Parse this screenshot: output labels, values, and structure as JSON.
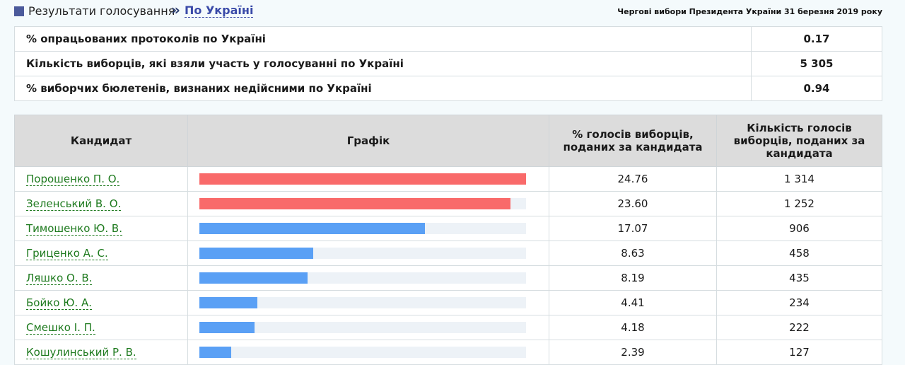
{
  "breadcrumb": {
    "root": "Результати голосування",
    "separator": "»",
    "current": "По Україні"
  },
  "election_title": "Чергові вибори Президента України 31 березня 2019 року",
  "summary": [
    {
      "label": "% опрацьованих протоколів по Україні",
      "value": "0.17"
    },
    {
      "label": "Кількість виборців, які взяли участь у голосуванні по Україні",
      "value": "5 305"
    },
    {
      "label": "% виборчих бюлетенів, визнаних недійсними по Україні",
      "value": "0.94"
    }
  ],
  "table": {
    "headers": {
      "candidate": "Кандидат",
      "chart": "Графік",
      "percent": "% голосів виборців, поданих за кандидата",
      "votes": "Кількість голосів виборців, поданих за кандидата"
    },
    "rows": [
      {
        "name": "Порошенко П. О.",
        "percent": "24.76",
        "votes": "1 314"
      },
      {
        "name": "Зеленський В. О.",
        "percent": "23.60",
        "votes": "1 252"
      },
      {
        "name": "Тимошенко Ю. В.",
        "percent": "17.07",
        "votes": "906"
      },
      {
        "name": "Гриценко А. С.",
        "percent": "8.63",
        "votes": "458"
      },
      {
        "name": "Ляшко О. В.",
        "percent": "8.19",
        "votes": "435"
      },
      {
        "name": "Бойко Ю. А.",
        "percent": "4.41",
        "votes": "234"
      },
      {
        "name": "Смешко І. П.",
        "percent": "4.18",
        "votes": "222"
      },
      {
        "name": "Кошулинський Р. В.",
        "percent": "2.39",
        "votes": "127"
      }
    ]
  },
  "colors": {
    "leader_bar": "#f96a6a",
    "other_bar": "#5aa0f5",
    "bar_track": "#edf2f7",
    "link": "#1e7a1e"
  },
  "chart_data": {
    "type": "bar",
    "categories": [
      "Порошенко П. О.",
      "Зеленський В. О.",
      "Тимошенко Ю. В.",
      "Гриценко А. С.",
      "Ляшко О. В.",
      "Бойко Ю. А.",
      "Смешко І. П.",
      "Кошулинський Р. В."
    ],
    "values": [
      24.76,
      23.6,
      17.07,
      8.63,
      8.19,
      4.41,
      4.18,
      2.39
    ],
    "title": "Графік",
    "xlabel": "",
    "ylabel": "",
    "ylim": [
      0,
      24.76
    ],
    "highlighted": [
      0,
      1
    ]
  }
}
